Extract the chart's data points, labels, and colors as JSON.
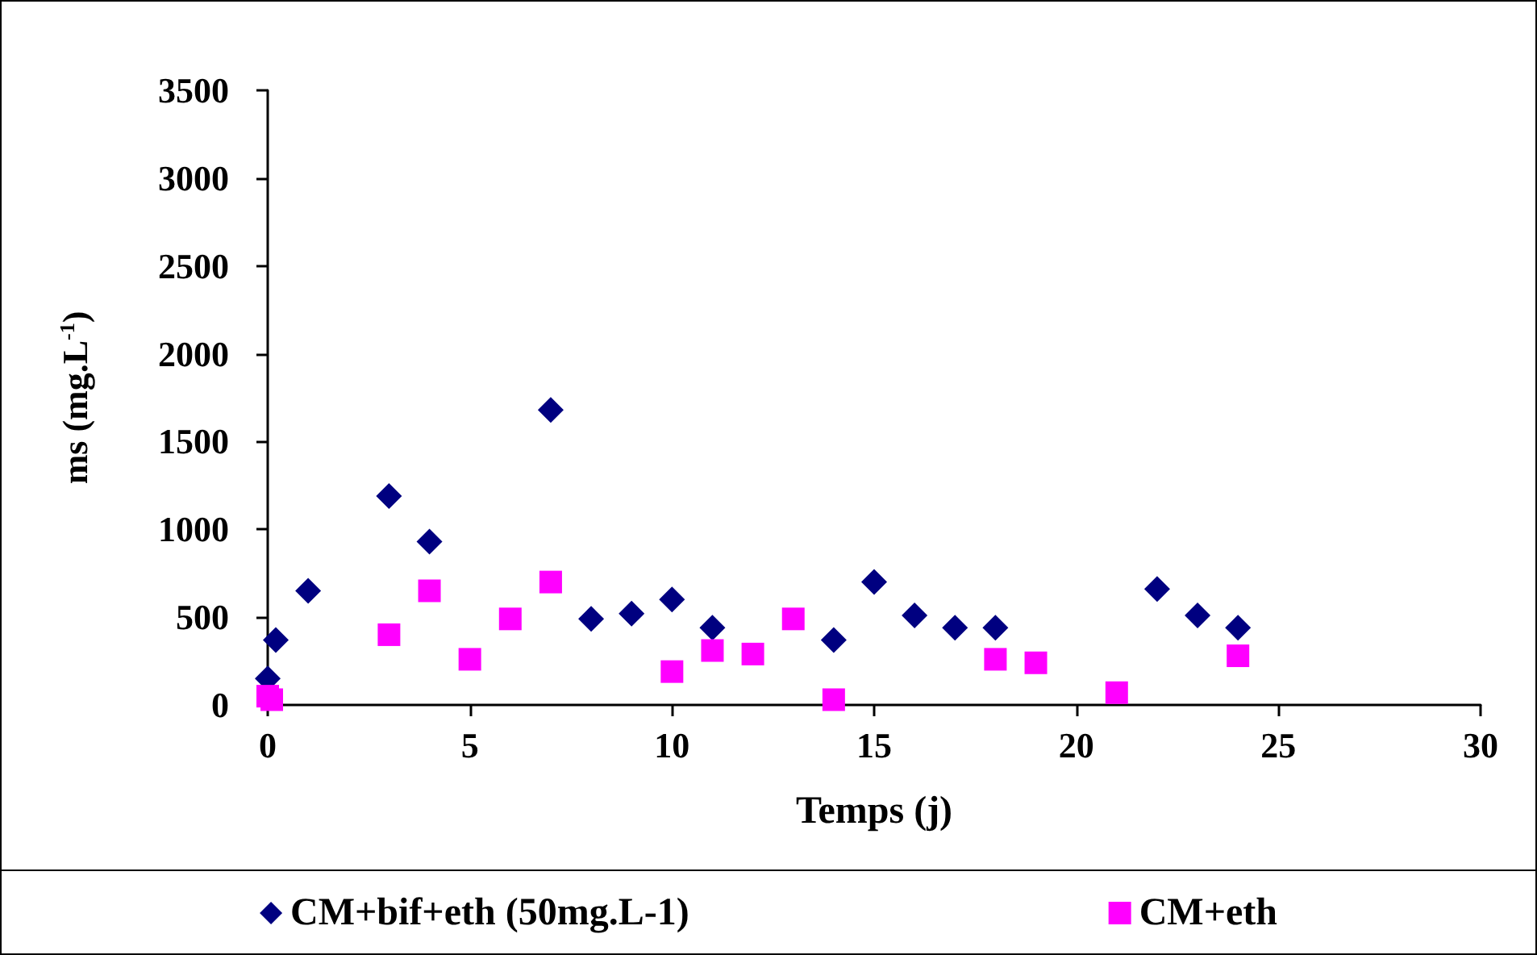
{
  "chart_data": {
    "type": "scatter",
    "xlabel": "Temps (j)",
    "ylabel": "ms (mg.L$^{-1}$)",
    "xlim": [
      0,
      30
    ],
    "xticks": [
      0,
      5,
      10,
      15,
      20,
      25,
      30
    ],
    "ylim": [
      0,
      3500
    ],
    "yticks": [
      0,
      500,
      1000,
      1500,
      2000,
      2500,
      3000,
      3500
    ],
    "grid": false,
    "legend": "bottom",
    "series": [
      {
        "name": "CM+bif+eth (50mg.L-1)",
        "color": "#000080",
        "marker": "diamond",
        "x": [
          0,
          0.2,
          1,
          3,
          4,
          7,
          8,
          9,
          10,
          11,
          14,
          15,
          16,
          17,
          18,
          22,
          23,
          24
        ],
        "values": [
          150,
          370,
          650,
          1190,
          930,
          1680,
          490,
          520,
          600,
          440,
          370,
          700,
          510,
          440,
          440,
          660,
          510,
          440
        ]
      },
      {
        "name": "CM+eth",
        "color": "#ff00ff",
        "marker": "square",
        "x": [
          0,
          0.1,
          3,
          4,
          5,
          6,
          7,
          10,
          11,
          12,
          13,
          14,
          18,
          19,
          21,
          24
        ],
        "values": [
          50,
          30,
          400,
          650,
          260,
          490,
          700,
          190,
          310,
          290,
          490,
          30,
          260,
          240,
          70,
          280
        ]
      }
    ]
  }
}
